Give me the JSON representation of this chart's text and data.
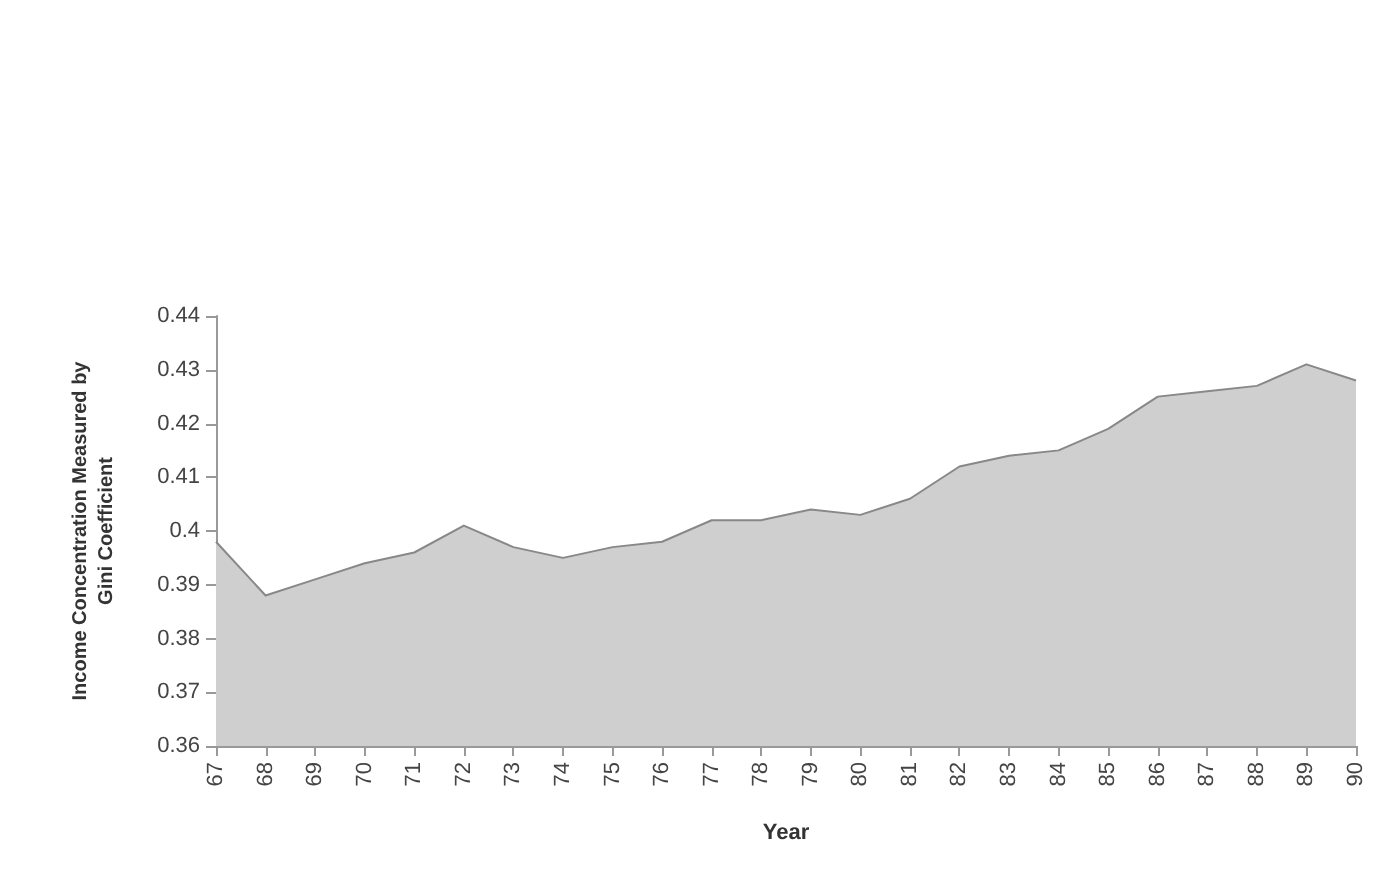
{
  "chart_data": {
    "type": "area",
    "xlabel": "Year",
    "ylabel": "Income Concentration Measured by\nGini Coefficient",
    "categories": [
      "67",
      "68",
      "69",
      "70",
      "71",
      "72",
      "73",
      "74",
      "75",
      "76",
      "77",
      "78",
      "79",
      "80",
      "81",
      "82",
      "83",
      "84",
      "85",
      "86",
      "87",
      "88",
      "89",
      "90"
    ],
    "series": [
      {
        "color": "#cfcfcf",
        "values": [
          0.398,
          0.388,
          0.391,
          0.394,
          0.396,
          0.401,
          0.397,
          0.395,
          0.397,
          0.398,
          0.402,
          0.402,
          0.404,
          0.403,
          0.406,
          0.412,
          0.414,
          0.415,
          0.419,
          0.425,
          0.426,
          0.427,
          0.431,
          0.428
        ]
      }
    ],
    "ylim": [
      0.36,
      0.44
    ],
    "yticks": [
      0.36,
      0.37,
      0.38,
      0.39,
      0.4,
      0.41,
      0.42,
      0.43,
      0.44
    ],
    "grid": false
  }
}
